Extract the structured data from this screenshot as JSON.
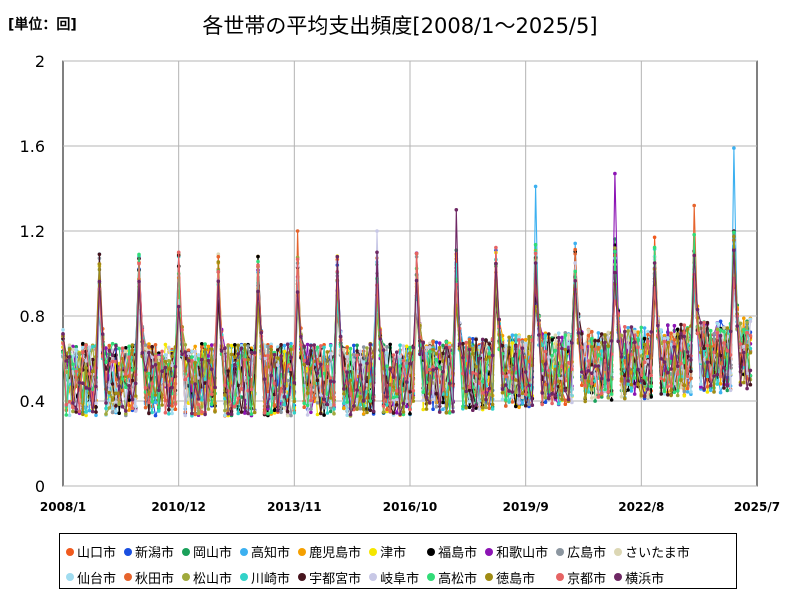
{
  "unit_label": "[単位：回]",
  "title": "各世帯の平均支出頻度[2008/1～2025/5]",
  "chart_data": {
    "type": "line",
    "title": "各世帯の平均支出頻度[2008/1～2025/5]",
    "ylabel": "",
    "xlabel": "",
    "ylim": [
      0,
      2
    ],
    "yticks": [
      "0",
      "0.4",
      "0.8",
      "1.2",
      "1.6",
      "2"
    ],
    "xticks": [
      "2008/1",
      "2010/12",
      "2013/11",
      "2016/10",
      "2019/9",
      "2022/8",
      "2025/7"
    ],
    "x_start": "2008/1",
    "x_end": "2025/5",
    "grid": true,
    "legend_position": "bottom",
    "series": [
      {
        "name": "山口市",
        "color": "#f05a1e"
      },
      {
        "name": "新潟市",
        "color": "#1a4fe0"
      },
      {
        "name": "岡山市",
        "color": "#1aa05a"
      },
      {
        "name": "高知市",
        "color": "#3cb0f0"
      },
      {
        "name": "鹿児島市",
        "color": "#f5a000"
      },
      {
        "name": "津市",
        "color": "#f5e600"
      },
      {
        "name": "福島市",
        "color": "#000000"
      },
      {
        "name": "和歌山市",
        "color": "#8c14b4"
      },
      {
        "name": "広島市",
        "color": "#8c96a0"
      },
      {
        "name": "さいたま市",
        "color": "#dcd7b4"
      },
      {
        "name": "仙台市",
        "color": "#a0dcf0"
      },
      {
        "name": "秋田市",
        "color": "#e6642d"
      },
      {
        "name": "松山市",
        "color": "#a0aa3c"
      },
      {
        "name": "川崎市",
        "color": "#32d2c8"
      },
      {
        "name": "宇都宮市",
        "color": "#46141e"
      },
      {
        "name": "岐阜市",
        "color": "#c8c8e6"
      },
      {
        "name": "高松市",
        "color": "#32dc78"
      },
      {
        "name": "徳島市",
        "color": "#a08c14"
      },
      {
        "name": "京都市",
        "color": "#e66464"
      },
      {
        "name": "横浜市",
        "color": "#6e2864"
      }
    ],
    "notable_peaks": [
      {
        "x": "2009/12",
        "y": 1.07
      },
      {
        "x": "2011/1",
        "y": 1.13
      },
      {
        "x": "2012/1",
        "y": 1.22
      },
      {
        "x": "2013/12",
        "y": 1.2
      },
      {
        "x": "2015/12",
        "y": 1.2
      },
      {
        "x": "2017/12",
        "y": 1.3
      },
      {
        "x": "2019/12",
        "y": 1.41
      },
      {
        "x": "2021/12",
        "y": 1.47
      },
      {
        "x": "2023/12",
        "y": 1.32
      },
      {
        "x": "2024/12",
        "y": 1.59
      }
    ]
  }
}
